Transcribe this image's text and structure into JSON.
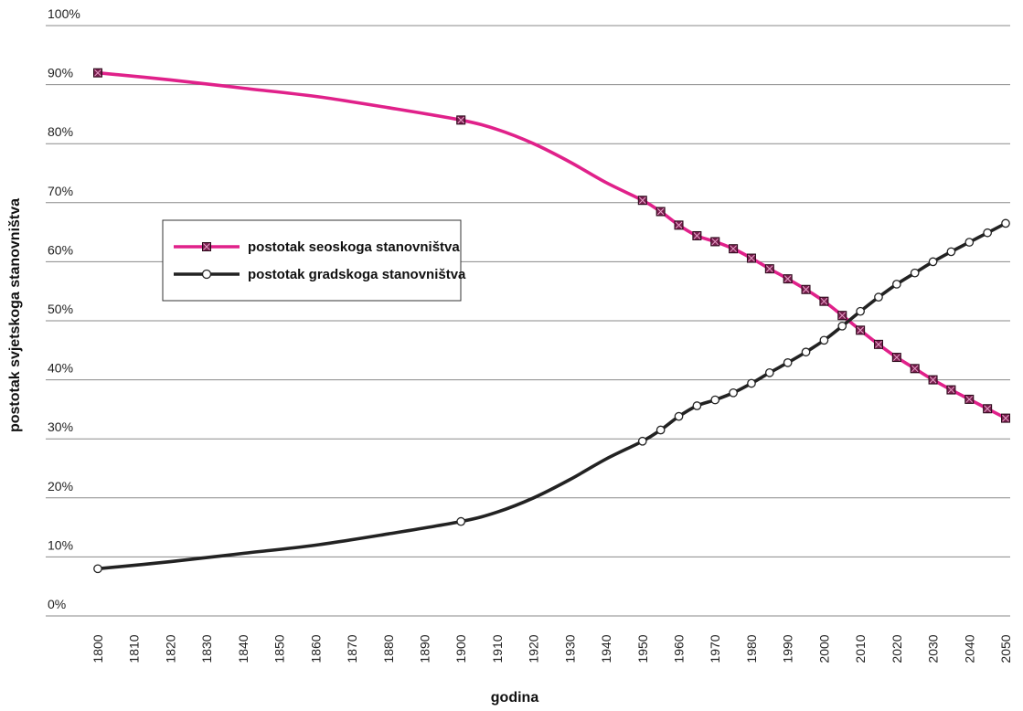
{
  "chart_data": {
    "type": "line",
    "title": "",
    "xlabel": "godina",
    "ylabel": "postotak svjetskoga stanovništva",
    "x_ticks": [
      "1800",
      "1810",
      "1820",
      "1830",
      "1840",
      "1850",
      "1860",
      "1870",
      "1880",
      "1890",
      "1900",
      "1910",
      "1920",
      "1930",
      "1940",
      "1950",
      "1960",
      "1970",
      "1980",
      "1990",
      "2000",
      "2010",
      "2020",
      "2030",
      "2040",
      "2050"
    ],
    "y_ticks": [
      "0%",
      "10%",
      "20%",
      "30%",
      "40%",
      "50%",
      "60%",
      "70%",
      "80%",
      "90%",
      "100%"
    ],
    "xlim": [
      1800,
      2050
    ],
    "ylim": [
      0,
      100
    ],
    "grid": "horizontal",
    "legend_position": "upper-left",
    "series": [
      {
        "name": "postotak seoskoga stanovništva",
        "color": "#e0218a",
        "marker": "crossed-square",
        "markers": [
          {
            "x": 1800,
            "y": 92.0
          },
          {
            "x": 1900,
            "y": 84.0
          },
          {
            "x": 1950,
            "y": 70.4
          },
          {
            "x": 1955,
            "y": 68.5
          },
          {
            "x": 1960,
            "y": 66.2
          },
          {
            "x": 1965,
            "y": 64.4
          },
          {
            "x": 1970,
            "y": 63.4
          },
          {
            "x": 1975,
            "y": 62.2
          },
          {
            "x": 1980,
            "y": 60.6
          },
          {
            "x": 1985,
            "y": 58.8
          },
          {
            "x": 1990,
            "y": 57.1
          },
          {
            "x": 1995,
            "y": 55.3
          },
          {
            "x": 2000,
            "y": 53.3
          },
          {
            "x": 2005,
            "y": 50.9
          },
          {
            "x": 2010,
            "y": 48.4
          },
          {
            "x": 2015,
            "y": 46.0
          },
          {
            "x": 2020,
            "y": 43.8
          },
          {
            "x": 2025,
            "y": 41.9
          },
          {
            "x": 2030,
            "y": 40.0
          },
          {
            "x": 2035,
            "y": 38.3
          },
          {
            "x": 2040,
            "y": 36.7
          },
          {
            "x": 2045,
            "y": 35.1
          },
          {
            "x": 2050,
            "y": 33.5
          }
        ],
        "curve": [
          {
            "x": 1800,
            "y": 92.0
          },
          {
            "x": 1820,
            "y": 90.8
          },
          {
            "x": 1840,
            "y": 89.4
          },
          {
            "x": 1860,
            "y": 88.0
          },
          {
            "x": 1880,
            "y": 86.1
          },
          {
            "x": 1900,
            "y": 84.0
          },
          {
            "x": 1910,
            "y": 82.4
          },
          {
            "x": 1920,
            "y": 80.0
          },
          {
            "x": 1930,
            "y": 76.9
          },
          {
            "x": 1940,
            "y": 73.4
          },
          {
            "x": 1950,
            "y": 70.4
          },
          {
            "x": 1955,
            "y": 68.5
          },
          {
            "x": 1960,
            "y": 66.2
          },
          {
            "x": 1965,
            "y": 64.4
          },
          {
            "x": 1970,
            "y": 63.4
          },
          {
            "x": 1975,
            "y": 62.2
          },
          {
            "x": 1980,
            "y": 60.6
          },
          {
            "x": 1985,
            "y": 58.8
          },
          {
            "x": 1990,
            "y": 57.1
          },
          {
            "x": 1995,
            "y": 55.3
          },
          {
            "x": 2000,
            "y": 53.3
          },
          {
            "x": 2005,
            "y": 50.9
          },
          {
            "x": 2010,
            "y": 48.4
          },
          {
            "x": 2015,
            "y": 46.0
          },
          {
            "x": 2020,
            "y": 43.8
          },
          {
            "x": 2025,
            "y": 41.9
          },
          {
            "x": 2030,
            "y": 40.0
          },
          {
            "x": 2035,
            "y": 38.3
          },
          {
            "x": 2040,
            "y": 36.7
          },
          {
            "x": 2045,
            "y": 35.1
          },
          {
            "x": 2050,
            "y": 33.5
          }
        ]
      },
      {
        "name": "postotak gradskoga stanovništva",
        "color": "#222222",
        "marker": "open-circle",
        "markers": [
          {
            "x": 1800,
            "y": 8.0
          },
          {
            "x": 1900,
            "y": 16.0
          },
          {
            "x": 1950,
            "y": 29.6
          },
          {
            "x": 1955,
            "y": 31.5
          },
          {
            "x": 1960,
            "y": 33.8
          },
          {
            "x": 1965,
            "y": 35.6
          },
          {
            "x": 1970,
            "y": 36.6
          },
          {
            "x": 1975,
            "y": 37.8
          },
          {
            "x": 1980,
            "y": 39.4
          },
          {
            "x": 1985,
            "y": 41.2
          },
          {
            "x": 1990,
            "y": 42.9
          },
          {
            "x": 1995,
            "y": 44.7
          },
          {
            "x": 2000,
            "y": 46.7
          },
          {
            "x": 2005,
            "y": 49.1
          },
          {
            "x": 2010,
            "y": 51.6
          },
          {
            "x": 2015,
            "y": 54.0
          },
          {
            "x": 2020,
            "y": 56.2
          },
          {
            "x": 2025,
            "y": 58.1
          },
          {
            "x": 2030,
            "y": 60.0
          },
          {
            "x": 2035,
            "y": 61.7
          },
          {
            "x": 2040,
            "y": 63.3
          },
          {
            "x": 2045,
            "y": 64.9
          },
          {
            "x": 2050,
            "y": 66.5
          }
        ],
        "curve": [
          {
            "x": 1800,
            "y": 8.0
          },
          {
            "x": 1820,
            "y": 9.2
          },
          {
            "x": 1840,
            "y": 10.6
          },
          {
            "x": 1860,
            "y": 12.0
          },
          {
            "x": 1880,
            "y": 13.9
          },
          {
            "x": 1900,
            "y": 16.0
          },
          {
            "x": 1910,
            "y": 17.6
          },
          {
            "x": 1920,
            "y": 20.0
          },
          {
            "x": 1930,
            "y": 23.1
          },
          {
            "x": 1940,
            "y": 26.6
          },
          {
            "x": 1950,
            "y": 29.6
          },
          {
            "x": 1955,
            "y": 31.5
          },
          {
            "x": 1960,
            "y": 33.8
          },
          {
            "x": 1965,
            "y": 35.6
          },
          {
            "x": 1970,
            "y": 36.6
          },
          {
            "x": 1975,
            "y": 37.8
          },
          {
            "x": 1980,
            "y": 39.4
          },
          {
            "x": 1985,
            "y": 41.2
          },
          {
            "x": 1990,
            "y": 42.9
          },
          {
            "x": 1995,
            "y": 44.7
          },
          {
            "x": 2000,
            "y": 46.7
          },
          {
            "x": 2005,
            "y": 49.1
          },
          {
            "x": 2010,
            "y": 51.6
          },
          {
            "x": 2015,
            "y": 54.0
          },
          {
            "x": 2020,
            "y": 56.2
          },
          {
            "x": 2025,
            "y": 58.1
          },
          {
            "x": 2030,
            "y": 60.0
          },
          {
            "x": 2035,
            "y": 61.7
          },
          {
            "x": 2040,
            "y": 63.3
          },
          {
            "x": 2045,
            "y": 64.9
          },
          {
            "x": 2050,
            "y": 66.5
          }
        ]
      }
    ]
  }
}
